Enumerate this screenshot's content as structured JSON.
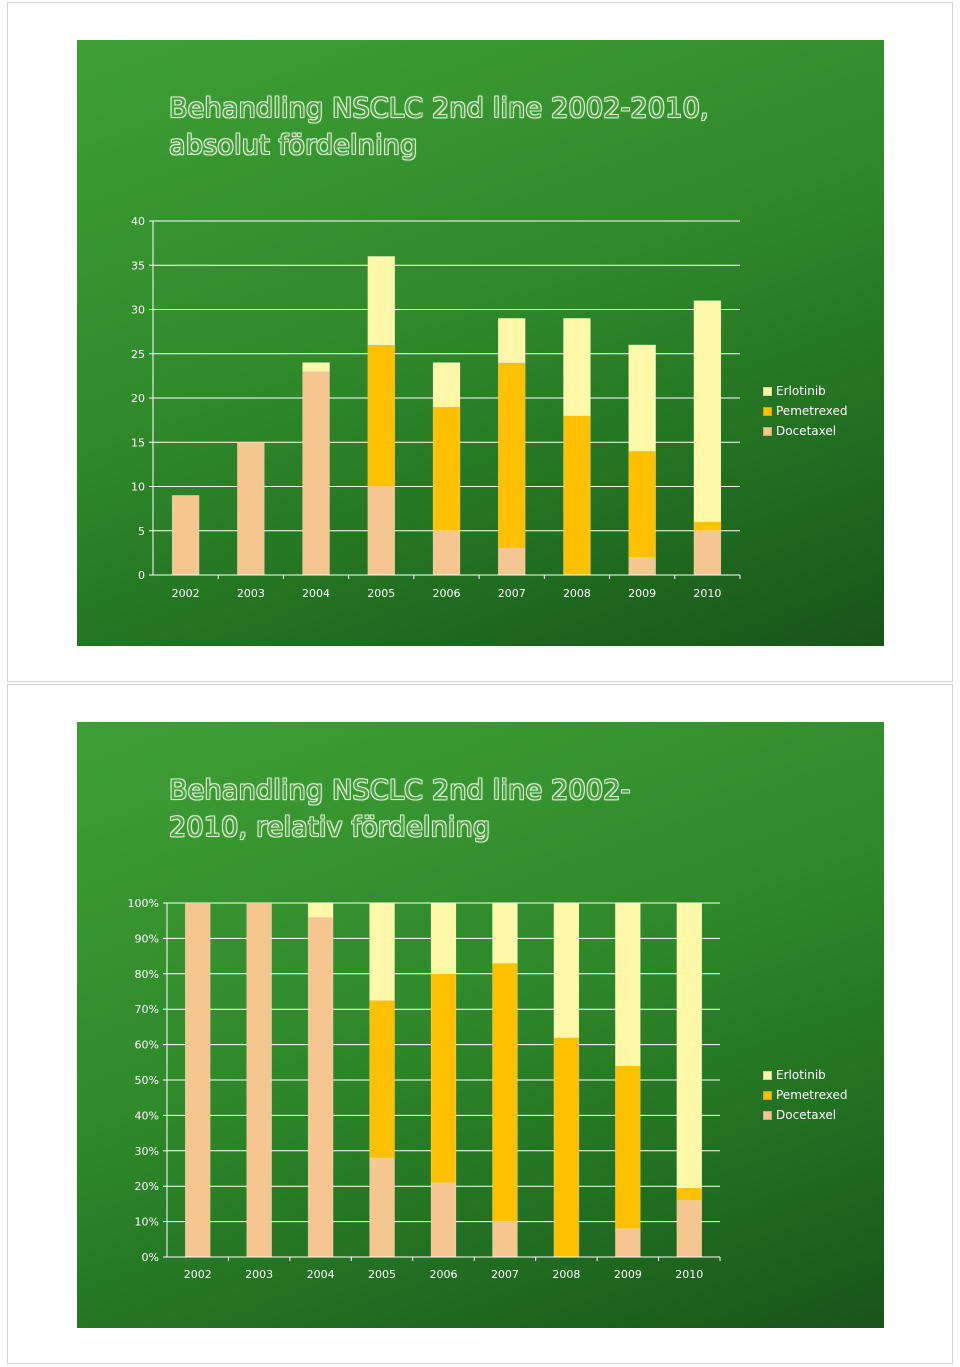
{
  "chart_data": [
    {
      "type": "bar",
      "stacked": true,
      "title": "Behandling NSCLC 2nd line 2002-2010, absolut fördelning",
      "categories": [
        "2002",
        "2003",
        "2004",
        "2005",
        "2006",
        "2007",
        "2008",
        "2009",
        "2010"
      ],
      "series": [
        {
          "name": "Docetaxel",
          "color": "#f6c690",
          "values": [
            9,
            15,
            23,
            10,
            5,
            3,
            0,
            2,
            5
          ]
        },
        {
          "name": "Pemetrexed",
          "color": "#ffc000",
          "values": [
            0,
            0,
            0,
            16,
            14,
            21,
            18,
            12,
            1
          ]
        },
        {
          "name": "Erlotinib",
          "color": "#fff8a8",
          "values": [
            0,
            0,
            1,
            10,
            5,
            5,
            11,
            12,
            25
          ]
        }
      ],
      "legend_order": [
        "Erlotinib",
        "Pemetrexed",
        "Docetaxel"
      ],
      "yticks": [
        "0",
        "5",
        "10",
        "15",
        "20",
        "25",
        "30",
        "35",
        "40"
      ],
      "ylim": [
        0,
        40
      ],
      "grid": true,
      "legend": "right"
    },
    {
      "type": "bar",
      "stacked": true,
      "percent": true,
      "title": "Behandling NSCLC 2nd line 2002-2010, relativ fördelning",
      "categories": [
        "2002",
        "2003",
        "2004",
        "2005",
        "2006",
        "2007",
        "2008",
        "2009",
        "2010"
      ],
      "series": [
        {
          "name": "Docetaxel",
          "color": "#f6c690",
          "values": [
            100,
            100,
            96,
            28,
            21,
            10,
            0,
            8,
            16
          ]
        },
        {
          "name": "Pemetrexed",
          "color": "#ffc000",
          "values": [
            0,
            0,
            0,
            44.5,
            59,
            73,
            62,
            46,
            3.5
          ]
        },
        {
          "name": "Erlotinib",
          "color": "#fff8a8",
          "values": [
            0,
            0,
            4,
            27.5,
            20,
            17,
            38,
            46,
            80.5
          ]
        }
      ],
      "legend_order": [
        "Erlotinib",
        "Pemetrexed",
        "Docetaxel"
      ],
      "yticks": [
        "0%",
        "10%",
        "20%",
        "30%",
        "40%",
        "50%",
        "60%",
        "70%",
        "80%",
        "90%",
        "100%"
      ],
      "ylim": [
        0,
        100
      ],
      "grid": true,
      "legend": "right"
    }
  ]
}
